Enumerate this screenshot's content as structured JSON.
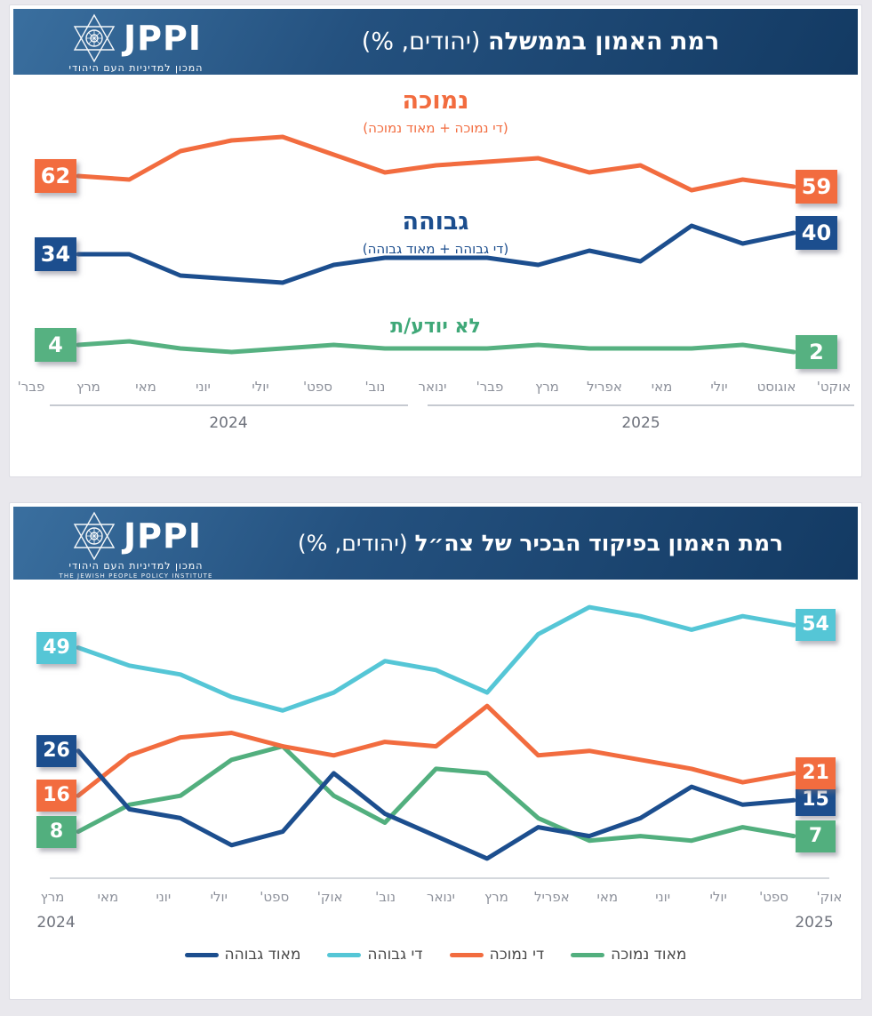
{
  "logo": {
    "name": "JPPI",
    "hebrew": "המכון למדיניות העם היהודי",
    "english": "THE JEWISH PEOPLE POLICY INSTITUTE"
  },
  "colors": {
    "orange": "#F26C3F",
    "dark_blue": "#1C4E8E",
    "cyan": "#55C6D6",
    "green": "#56B181",
    "green2": "#52AF7E",
    "header_gradient_start": "#3a6f9f",
    "header_gradient_end": "#133a63",
    "page_bg": "#E9E8ED"
  },
  "chart_data": [
    {
      "type": "line",
      "title": "רמת האמון בממשלה (יהודים, %)",
      "title_bold": "רמת האמון בממשלה",
      "title_paren": "(יהודים, %)",
      "categories": [
        "פבר'",
        "מרץ",
        "מאי",
        "יוני",
        "יולי",
        "ספט'",
        "נוב'",
        "ינואר",
        "פבר'",
        "מרץ",
        "אפריל",
        "מאי",
        "יולי",
        "אוגוסט",
        "אוקט'"
      ],
      "year_groups": [
        {
          "label": "2024",
          "from": 0,
          "to": 6
        },
        {
          "label": "2025",
          "from": 7,
          "to": 14
        }
      ],
      "series": [
        {
          "name": "נמוכה",
          "sub": "(די נמוכה + מאוד נמוכה)",
          "color": "#F26C3F",
          "start_label": "62",
          "end_label": "59",
          "values": [
            62,
            61,
            69,
            72,
            73,
            68,
            63,
            65,
            66,
            67,
            63,
            65,
            58,
            61,
            59
          ]
        },
        {
          "name": "גבוהה",
          "sub": "(די גבוהה + מאוד גבוהה)",
          "color": "#1C4E8E",
          "start_label": "34",
          "end_label": "40",
          "values": [
            34,
            34,
            28,
            27,
            26,
            31,
            33,
            33,
            33,
            31,
            35,
            32,
            42,
            37,
            40
          ]
        },
        {
          "name": "לא יודע/ת",
          "sub": "",
          "color": "#56B181",
          "start_label": "4",
          "end_label": "2",
          "values": [
            4,
            5,
            3,
            2,
            3,
            4,
            3,
            3,
            3,
            4,
            3,
            3,
            3,
            4,
            2
          ]
        }
      ],
      "grid": false,
      "legend_position": "none"
    },
    {
      "type": "line",
      "title": "רמת האמון בפיקוד הבכיר של צה״ל (יהודים, %)",
      "title_bold": "רמת האמון בפיקוד הבכיר של צה״ל",
      "title_paren": "(יהודים, %)",
      "categories": [
        "מרץ",
        "מאי",
        "יוני",
        "יולי",
        "ספט'",
        "אוק'",
        "נוב'",
        "ינואר",
        "מרץ",
        "אפריל",
        "מאי",
        "יוני",
        "יולי",
        "ספט'",
        "אוק'"
      ],
      "year_labels": [
        {
          "label": "2024",
          "index": 0
        },
        {
          "label": "2025",
          "index": 14
        }
      ],
      "series": [
        {
          "name": "מאוד גבוהה",
          "color": "#1C4E8E",
          "start_label": "26",
          "end_label": "15",
          "values": [
            26,
            13,
            11,
            5,
            8,
            21,
            12,
            7,
            2,
            9,
            7,
            11,
            18,
            14,
            15
          ]
        },
        {
          "name": "די גבוהה",
          "color": "#55C6D6",
          "start_label": "49",
          "end_label": "54",
          "values": [
            49,
            45,
            43,
            38,
            35,
            39,
            46,
            44,
            39,
            52,
            58,
            56,
            53,
            56,
            54
          ]
        },
        {
          "name": "די נמוכה",
          "color": "#F26C3F",
          "start_label": "16",
          "end_label": "21",
          "values": [
            16,
            25,
            29,
            30,
            27,
            25,
            28,
            27,
            36,
            25,
            26,
            24,
            22,
            19,
            21
          ]
        },
        {
          "name": "מאוד נמוכה",
          "color": "#52AF7E",
          "start_label": "8",
          "end_label": "7",
          "values": [
            8,
            14,
            16,
            24,
            27,
            16,
            10,
            22,
            21,
            11,
            6,
            7,
            6,
            9,
            7
          ]
        }
      ],
      "grid": false,
      "legend_position": "bottom",
      "legend": [
        "מאוד גבוהה",
        "די גבוהה",
        "די נמוכה",
        "מאוד נמוכה"
      ]
    }
  ]
}
